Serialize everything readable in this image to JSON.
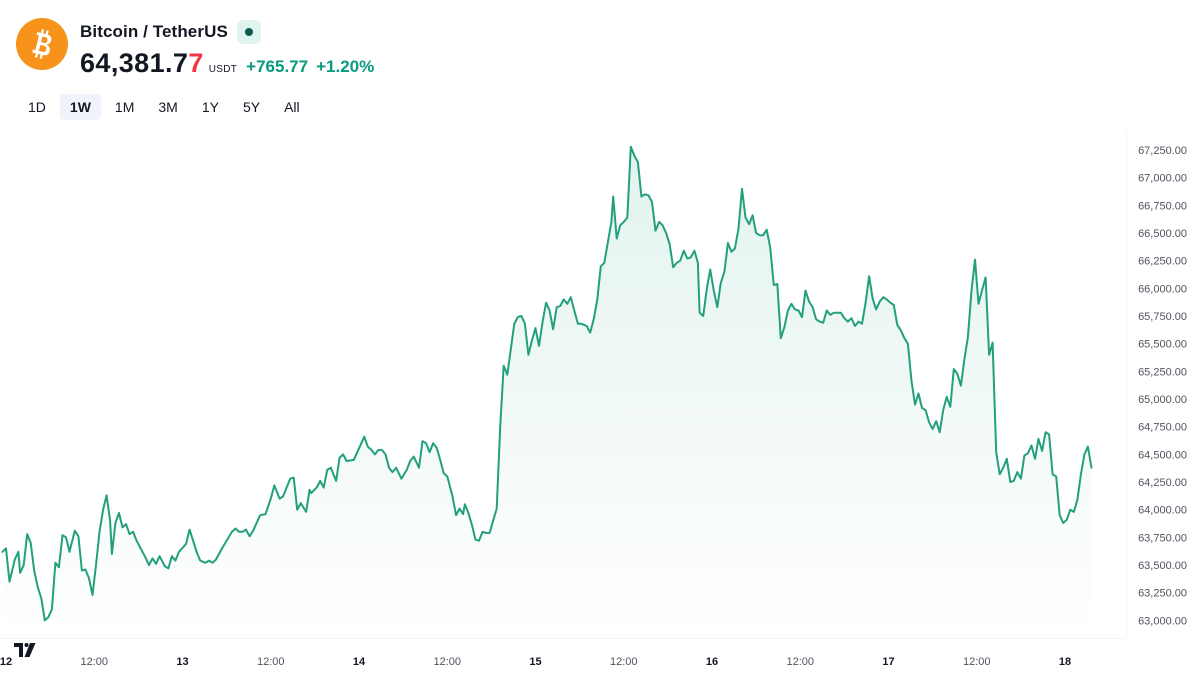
{
  "header": {
    "pair_title": "Bitcoin / TetherUS",
    "price_main": "64,381.7",
    "price_last_digit": "7",
    "currency": "USDT",
    "change": "+765.77",
    "change_pct": "+1.20%"
  },
  "ranges": [
    "1D",
    "1W",
    "1M",
    "3M",
    "1Y",
    "5Y",
    "All"
  ],
  "active_range": "1W",
  "colors": {
    "line": "#22a07d",
    "positive": "#089981",
    "last_digit": "#f23645",
    "brand": "#f7931a"
  },
  "chart_data": {
    "type": "area",
    "y_axis_side": "right",
    "ylim": [
      62900,
      67350
    ],
    "y_ticks": [
      "67,250.00",
      "67,000.00",
      "66,750.00",
      "66,500.00",
      "66,250.00",
      "66,000.00",
      "65,750.00",
      "65,500.00",
      "65,250.00",
      "65,000.00",
      "64,750.00",
      "64,500.00",
      "64,250.00",
      "64,000.00",
      "63,750.00",
      "63,500.00",
      "63,250.00",
      "63,000.00"
    ],
    "x_ticks": [
      {
        "t": 0.0,
        "label": "12"
      },
      {
        "t": 0.5,
        "label": "12:00"
      },
      {
        "t": 1.0,
        "label": "13"
      },
      {
        "t": 1.5,
        "label": "12:00"
      },
      {
        "t": 2.0,
        "label": "14"
      },
      {
        "t": 2.5,
        "label": "12:00"
      },
      {
        "t": 3.0,
        "label": "15"
      },
      {
        "t": 3.5,
        "label": "12:00"
      },
      {
        "t": 4.0,
        "label": "16"
      },
      {
        "t": 4.5,
        "label": "12:00"
      },
      {
        "t": 5.0,
        "label": "17"
      },
      {
        "t": 5.5,
        "label": "12:00"
      },
      {
        "t": 6.0,
        "label": "18"
      }
    ],
    "points": [
      [
        -0.02,
        63620
      ],
      [
        0.0,
        63650
      ],
      [
        0.02,
        63350
      ],
      [
        0.05,
        63550
      ],
      [
        0.07,
        63620
      ],
      [
        0.08,
        63430
      ],
      [
        0.1,
        63500
      ],
      [
        0.12,
        63780
      ],
      [
        0.14,
        63700
      ],
      [
        0.16,
        63450
      ],
      [
        0.18,
        63300
      ],
      [
        0.2,
        63200
      ],
      [
        0.22,
        63000
      ],
      [
        0.24,
        63030
      ],
      [
        0.26,
        63100
      ],
      [
        0.28,
        63520
      ],
      [
        0.3,
        63480
      ],
      [
        0.32,
        63770
      ],
      [
        0.34,
        63750
      ],
      [
        0.36,
        63620
      ],
      [
        0.39,
        63810
      ],
      [
        0.41,
        63760
      ],
      [
        0.43,
        63450
      ],
      [
        0.45,
        63460
      ],
      [
        0.47,
        63380
      ],
      [
        0.49,
        63230
      ],
      [
        0.51,
        63500
      ],
      [
        0.53,
        63800
      ],
      [
        0.55,
        64000
      ],
      [
        0.57,
        64130
      ],
      [
        0.59,
        63900
      ],
      [
        0.6,
        63600
      ],
      [
        0.62,
        63880
      ],
      [
        0.64,
        63970
      ],
      [
        0.66,
        63840
      ],
      [
        0.68,
        63870
      ],
      [
        0.7,
        63780
      ],
      [
        0.72,
        63800
      ],
      [
        0.74,
        63720
      ],
      [
        0.77,
        63630
      ],
      [
        0.79,
        63570
      ],
      [
        0.81,
        63500
      ],
      [
        0.83,
        63560
      ],
      [
        0.85,
        63510
      ],
      [
        0.87,
        63580
      ],
      [
        0.9,
        63490
      ],
      [
        0.92,
        63470
      ],
      [
        0.94,
        63580
      ],
      [
        0.96,
        63540
      ],
      [
        0.98,
        63620
      ],
      [
        1.02,
        63690
      ],
      [
        1.04,
        63820
      ],
      [
        1.06,
        63720
      ],
      [
        1.08,
        63620
      ],
      [
        1.1,
        63540
      ],
      [
        1.13,
        63520
      ],
      [
        1.15,
        63540
      ],
      [
        1.17,
        63520
      ],
      [
        1.19,
        63550
      ],
      [
        1.22,
        63640
      ],
      [
        1.25,
        63720
      ],
      [
        1.28,
        63800
      ],
      [
        1.3,
        63830
      ],
      [
        1.32,
        63800
      ],
      [
        1.34,
        63800
      ],
      [
        1.36,
        63820
      ],
      [
        1.38,
        63760
      ],
      [
        1.4,
        63810
      ],
      [
        1.42,
        63880
      ],
      [
        1.44,
        63950
      ],
      [
        1.47,
        63960
      ],
      [
        1.5,
        64100
      ],
      [
        1.52,
        64220
      ],
      [
        1.55,
        64100
      ],
      [
        1.57,
        64120
      ],
      [
        1.59,
        64200
      ],
      [
        1.61,
        64280
      ],
      [
        1.63,
        64290
      ],
      [
        1.65,
        64000
      ],
      [
        1.67,
        64060
      ],
      [
        1.7,
        63980
      ],
      [
        1.72,
        64180
      ],
      [
        1.73,
        64150
      ],
      [
        1.76,
        64200
      ],
      [
        1.78,
        64260
      ],
      [
        1.8,
        64200
      ],
      [
        1.82,
        64360
      ],
      [
        1.84,
        64380
      ],
      [
        1.87,
        64260
      ],
      [
        1.89,
        64470
      ],
      [
        1.91,
        64500
      ],
      [
        1.93,
        64440
      ],
      [
        1.97,
        64450
      ],
      [
        2.01,
        64590
      ],
      [
        2.03,
        64660
      ],
      [
        2.05,
        64570
      ],
      [
        2.07,
        64540
      ],
      [
        2.09,
        64500
      ],
      [
        2.11,
        64540
      ],
      [
        2.13,
        64540
      ],
      [
        2.15,
        64500
      ],
      [
        2.17,
        64380
      ],
      [
        2.19,
        64340
      ],
      [
        2.21,
        64380
      ],
      [
        2.24,
        64280
      ],
      [
        2.27,
        64360
      ],
      [
        2.29,
        64440
      ],
      [
        2.31,
        64480
      ],
      [
        2.34,
        64380
      ],
      [
        2.36,
        64620
      ],
      [
        2.38,
        64600
      ],
      [
        2.4,
        64520
      ],
      [
        2.42,
        64600
      ],
      [
        2.44,
        64560
      ],
      [
        2.46,
        64450
      ],
      [
        2.48,
        64330
      ],
      [
        2.5,
        64300
      ],
      [
        2.53,
        64120
      ],
      [
        2.55,
        63950
      ],
      [
        2.57,
        64010
      ],
      [
        2.59,
        63960
      ],
      [
        2.6,
        64050
      ],
      [
        2.62,
        63970
      ],
      [
        2.64,
        63860
      ],
      [
        2.66,
        63730
      ],
      [
        2.68,
        63720
      ],
      [
        2.7,
        63800
      ],
      [
        2.72,
        63790
      ],
      [
        2.74,
        63790
      ],
      [
        2.76,
        63900
      ],
      [
        2.78,
        64010
      ],
      [
        2.8,
        64750
      ],
      [
        2.82,
        65300
      ],
      [
        2.84,
        65220
      ],
      [
        2.86,
        65450
      ],
      [
        2.88,
        65680
      ],
      [
        2.9,
        65740
      ],
      [
        2.92,
        65750
      ],
      [
        2.94,
        65680
      ],
      [
        2.96,
        65400
      ],
      [
        2.98,
        65530
      ],
      [
        3.0,
        65640
      ],
      [
        3.02,
        65480
      ],
      [
        3.04,
        65700
      ],
      [
        3.06,
        65870
      ],
      [
        3.08,
        65800
      ],
      [
        3.1,
        65630
      ],
      [
        3.12,
        65830
      ],
      [
        3.14,
        65840
      ],
      [
        3.16,
        65900
      ],
      [
        3.18,
        65860
      ],
      [
        3.2,
        65920
      ],
      [
        3.22,
        65800
      ],
      [
        3.24,
        65680
      ],
      [
        3.26,
        65680
      ],
      [
        3.29,
        65660
      ],
      [
        3.31,
        65600
      ],
      [
        3.33,
        65720
      ],
      [
        3.35,
        65900
      ],
      [
        3.37,
        66200
      ],
      [
        3.39,
        66230
      ],
      [
        3.41,
        66420
      ],
      [
        3.43,
        66600
      ],
      [
        3.44,
        66830
      ],
      [
        3.46,
        66450
      ],
      [
        3.48,
        66570
      ],
      [
        3.5,
        66600
      ],
      [
        3.52,
        66640
      ],
      [
        3.54,
        67280
      ],
      [
        3.56,
        67200
      ],
      [
        3.58,
        67140
      ],
      [
        3.6,
        66830
      ],
      [
        3.62,
        66850
      ],
      [
        3.64,
        66840
      ],
      [
        3.66,
        66780
      ],
      [
        3.68,
        66520
      ],
      [
        3.7,
        66600
      ],
      [
        3.72,
        66570
      ],
      [
        3.74,
        66500
      ],
      [
        3.76,
        66400
      ],
      [
        3.78,
        66190
      ],
      [
        3.8,
        66230
      ],
      [
        3.82,
        66250
      ],
      [
        3.84,
        66340
      ],
      [
        3.86,
        66270
      ],
      [
        3.88,
        66280
      ],
      [
        3.9,
        66340
      ],
      [
        3.92,
        66230
      ],
      [
        3.93,
        65780
      ],
      [
        3.95,
        65750
      ],
      [
        3.97,
        65990
      ],
      [
        3.99,
        66170
      ],
      [
        4.01,
        65980
      ],
      [
        4.03,
        65830
      ],
      [
        4.05,
        66050
      ],
      [
        4.07,
        66150
      ],
      [
        4.09,
        66410
      ],
      [
        4.11,
        66330
      ],
      [
        4.13,
        66360
      ],
      [
        4.15,
        66540
      ],
      [
        4.17,
        66900
      ],
      [
        4.19,
        66640
      ],
      [
        4.21,
        66580
      ],
      [
        4.23,
        66660
      ],
      [
        4.25,
        66500
      ],
      [
        4.27,
        66480
      ],
      [
        4.29,
        66480
      ],
      [
        4.31,
        66530
      ],
      [
        4.33,
        66370
      ],
      [
        4.35,
        66030
      ],
      [
        4.37,
        66040
      ],
      [
        4.39,
        65550
      ],
      [
        4.41,
        65650
      ],
      [
        4.43,
        65800
      ],
      [
        4.45,
        65860
      ],
      [
        4.47,
        65810
      ],
      [
        4.49,
        65800
      ],
      [
        4.51,
        65740
      ],
      [
        4.53,
        65980
      ],
      [
        4.55,
        65880
      ],
      [
        4.57,
        65830
      ],
      [
        4.59,
        65720
      ],
      [
        4.61,
        65700
      ],
      [
        4.63,
        65690
      ],
      [
        4.65,
        65800
      ],
      [
        4.67,
        65760
      ],
      [
        4.69,
        65780
      ],
      [
        4.71,
        65780
      ],
      [
        4.73,
        65780
      ],
      [
        4.75,
        65730
      ],
      [
        4.77,
        65700
      ],
      [
        4.79,
        65730
      ],
      [
        4.81,
        65660
      ],
      [
        4.83,
        65700
      ],
      [
        4.85,
        65680
      ],
      [
        4.87,
        65870
      ],
      [
        4.89,
        66110
      ],
      [
        4.91,
        65910
      ],
      [
        4.93,
        65810
      ],
      [
        4.95,
        65880
      ],
      [
        4.97,
        65920
      ],
      [
        4.99,
        65900
      ],
      [
        5.01,
        65870
      ],
      [
        5.03,
        65850
      ],
      [
        5.05,
        65670
      ],
      [
        5.07,
        65620
      ],
      [
        5.09,
        65550
      ],
      [
        5.11,
        65500
      ],
      [
        5.13,
        65170
      ],
      [
        5.15,
        64950
      ],
      [
        5.17,
        65050
      ],
      [
        5.19,
        64920
      ],
      [
        5.21,
        64900
      ],
      [
        5.23,
        64790
      ],
      [
        5.25,
        64730
      ],
      [
        5.27,
        64800
      ],
      [
        5.29,
        64700
      ],
      [
        5.31,
        64900
      ],
      [
        5.33,
        65020
      ],
      [
        5.35,
        64930
      ],
      [
        5.37,
        65270
      ],
      [
        5.39,
        65230
      ],
      [
        5.41,
        65120
      ],
      [
        5.43,
        65360
      ],
      [
        5.45,
        65560
      ],
      [
        5.47,
        65980
      ],
      [
        5.49,
        66260
      ],
      [
        5.51,
        65860
      ],
      [
        5.53,
        65980
      ],
      [
        5.55,
        66100
      ],
      [
        5.57,
        65400
      ],
      [
        5.59,
        65510
      ],
      [
        5.61,
        64520
      ],
      [
        5.63,
        64320
      ],
      [
        5.65,
        64380
      ],
      [
        5.67,
        64460
      ],
      [
        5.69,
        64250
      ],
      [
        5.71,
        64260
      ],
      [
        5.73,
        64340
      ],
      [
        5.75,
        64280
      ],
      [
        5.77,
        64490
      ],
      [
        5.79,
        64510
      ],
      [
        5.81,
        64580
      ],
      [
        5.83,
        64460
      ],
      [
        5.85,
        64640
      ],
      [
        5.87,
        64530
      ],
      [
        5.89,
        64700
      ],
      [
        5.91,
        64680
      ],
      [
        5.93,
        64320
      ],
      [
        5.95,
        64300
      ],
      [
        5.97,
        63950
      ],
      [
        5.99,
        63880
      ],
      [
        6.01,
        63910
      ],
      [
        6.03,
        64000
      ],
      [
        6.05,
        63980
      ],
      [
        6.07,
        64090
      ],
      [
        6.09,
        64320
      ],
      [
        6.11,
        64500
      ],
      [
        6.13,
        64570
      ],
      [
        6.15,
        64380
      ]
    ]
  }
}
